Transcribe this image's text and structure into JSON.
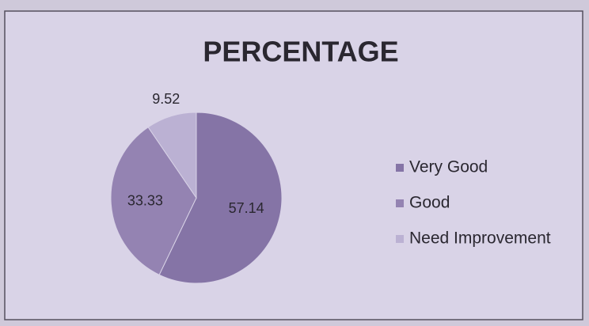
{
  "chart_data": {
    "type": "pie",
    "title": "PERCENTAGE",
    "categories": [
      "Very Good",
      "Good",
      "Need Improvement"
    ],
    "values": [
      57.14,
      33.33,
      9.52
    ],
    "colors": [
      "#8574a6",
      "#9483b2",
      "#bbb1d3"
    ],
    "legend": "right"
  }
}
